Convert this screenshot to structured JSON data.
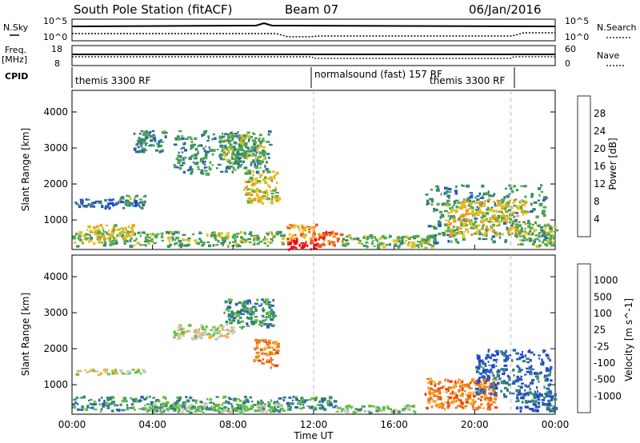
{
  "header": {
    "station": "South Pole Station (fitACF)",
    "beam": "Beam 07",
    "date": "06/Jan/2016"
  },
  "strips": {
    "nsky_label": "N.Sky",
    "nsky_ticks": [
      "10^5",
      "10^0"
    ],
    "nsearch_label": "N.Search",
    "freq_label": "Freq.",
    "freq_unit": "[MHz]",
    "freq_ticks": [
      "18",
      "8"
    ],
    "nave_label": "Nave",
    "nave_ticks": [
      "60",
      "0"
    ],
    "cpid_label": "CPID",
    "cpid_segments": [
      "themis 3300 RF",
      "normalsound (fast) 157 RF",
      "themis 3300 RF"
    ]
  },
  "chart_data": [
    {
      "type": "heatmap",
      "title": "",
      "ylabel": "Slant Range [km]",
      "ylim": [
        180,
        4600
      ],
      "yticks": [
        "1000",
        "2000",
        "3000",
        "4000"
      ],
      "xlim": [
        "00:00",
        "24:00"
      ],
      "colorbar_label": "Power [dB]",
      "colorbar_ticks": [
        "4",
        "8",
        "12",
        "16",
        "20",
        "24",
        "28"
      ],
      "colors": [
        "#1f3fd6",
        "#2a5fb0",
        "#3a8a6a",
        "#4fa84f",
        "#e0c020",
        "#f09a1a",
        "#f05a1a",
        "#e81010"
      ],
      "regions": [
        {
          "t": [
            0.1,
            3.5
          ],
          "r": [
            1350,
            1600
          ],
          "level": 1
        },
        {
          "t": [
            2.3,
            3.6
          ],
          "r": [
            1450,
            1700
          ],
          "level": 3
        },
        {
          "t": [
            0.0,
            10.5
          ],
          "r": [
            300,
            700
          ],
          "level": 3
        },
        {
          "t": [
            0.5,
            3.0
          ],
          "r": [
            500,
            900
          ],
          "level": 4
        },
        {
          "t": [
            5.0,
            9.8
          ],
          "r": [
            2300,
            3500
          ],
          "level": 2
        },
        {
          "t": [
            7.3,
            9.5
          ],
          "r": [
            2600,
            3400
          ],
          "level": 3
        },
        {
          "t": [
            8.5,
            10.2
          ],
          "r": [
            1500,
            2400
          ],
          "level": 4
        },
        {
          "t": [
            3.0,
            4.6
          ],
          "r": [
            2900,
            3500
          ],
          "level": 2
        },
        {
          "t": [
            10.6,
            12.1
          ],
          "r": [
            500,
            900
          ],
          "level": 5
        },
        {
          "t": [
            10.6,
            12.1
          ],
          "r": [
            200,
            500
          ],
          "level": 7
        },
        {
          "t": [
            12.1,
            13.4
          ],
          "r": [
            300,
            700
          ],
          "level": 6
        },
        {
          "t": [
            13.4,
            18.0
          ],
          "r": [
            250,
            600
          ],
          "level": 3
        },
        {
          "t": [
            17.5,
            23.5
          ],
          "r": [
            400,
            2000
          ],
          "level": 2
        },
        {
          "t": [
            18.5,
            22.5
          ],
          "r": [
            600,
            1600
          ],
          "level": 4
        },
        {
          "t": [
            22.0,
            24.0
          ],
          "r": [
            300,
            900
          ],
          "level": 3
        }
      ]
    },
    {
      "type": "heatmap",
      "title": "",
      "ylabel": "Slant Range [km]",
      "ylim": [
        180,
        4600
      ],
      "yticks": [
        "1000",
        "2000",
        "3000",
        "4000"
      ],
      "xlabel": "Time UT",
      "xticks": [
        "00:00",
        "04:00",
        "08:00",
        "12:00",
        "16:00",
        "20:00",
        "00:00"
      ],
      "xlim": [
        "00:00",
        "24:00"
      ],
      "colorbar_label": "Velocity [m s^-1]",
      "colorbar_ticks": [
        "1000",
        "500",
        "100",
        "25",
        "-25",
        "-100",
        "-500",
        "-1000"
      ],
      "colors": [
        "#1f3fd6",
        "#2a5fb0",
        "#3a8a6a",
        "#5fc040",
        "#c8c8c0",
        "#f0b030",
        "#f07a1a",
        "#f04010",
        "#e81010"
      ],
      "regions": [
        {
          "t": [
            0.1,
            3.6
          ],
          "r": [
            1300,
            1450
          ],
          "level": 4
        },
        {
          "t": [
            0.0,
            10.5
          ],
          "r": [
            300,
            700
          ],
          "level": 2
        },
        {
          "t": [
            3.5,
            10.5
          ],
          "r": [
            250,
            500
          ],
          "level": 3
        },
        {
          "t": [
            5.0,
            8.0
          ],
          "r": [
            2300,
            2700
          ],
          "level": 4
        },
        {
          "t": [
            7.5,
            10.0
          ],
          "r": [
            2600,
            3400
          ],
          "level": 2
        },
        {
          "t": [
            9.0,
            10.2
          ],
          "r": [
            1500,
            2300
          ],
          "level": 6
        },
        {
          "t": [
            10.6,
            13.0
          ],
          "r": [
            350,
            700
          ],
          "level": 2
        },
        {
          "t": [
            13.0,
            17.0
          ],
          "r": [
            250,
            450
          ],
          "level": 3
        },
        {
          "t": [
            17.5,
            21.0
          ],
          "r": [
            350,
            1200
          ],
          "level": 6
        },
        {
          "t": [
            20.0,
            23.8
          ],
          "r": [
            700,
            2000
          ],
          "level": 1
        },
        {
          "t": [
            22.0,
            24.0
          ],
          "r": [
            300,
            800
          ],
          "level": 1
        }
      ]
    }
  ]
}
